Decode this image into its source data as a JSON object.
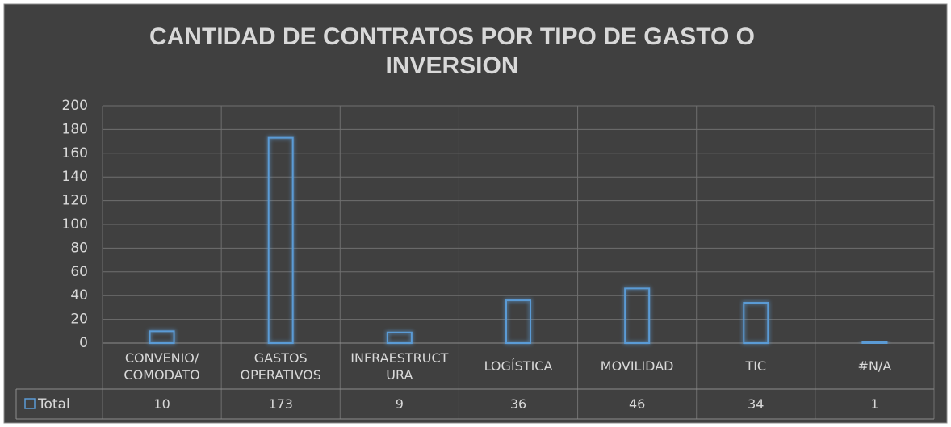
{
  "chart_data": {
    "type": "bar",
    "title": "CANTIDAD DE CONTRATOS POR TIPO DE GASTO O INVERSION",
    "categories": [
      "CONVENIO/\nCOMODATO",
      "GASTOS\nOPERATIVOS",
      "INFRAESTRUCT\nURA",
      "LOGÍSTICA",
      "MOVILIDAD",
      "TIC",
      "#N/A"
    ],
    "series": [
      {
        "name": "Total",
        "color": "#5b9bd5",
        "values": [
          10,
          173,
          9,
          36,
          46,
          34,
          1
        ]
      }
    ],
    "ylim": [
      0,
      200
    ],
    "yticks": [
      0,
      20,
      40,
      60,
      80,
      100,
      120,
      140,
      160,
      180,
      200
    ],
    "grid": true,
    "data_table": true
  }
}
